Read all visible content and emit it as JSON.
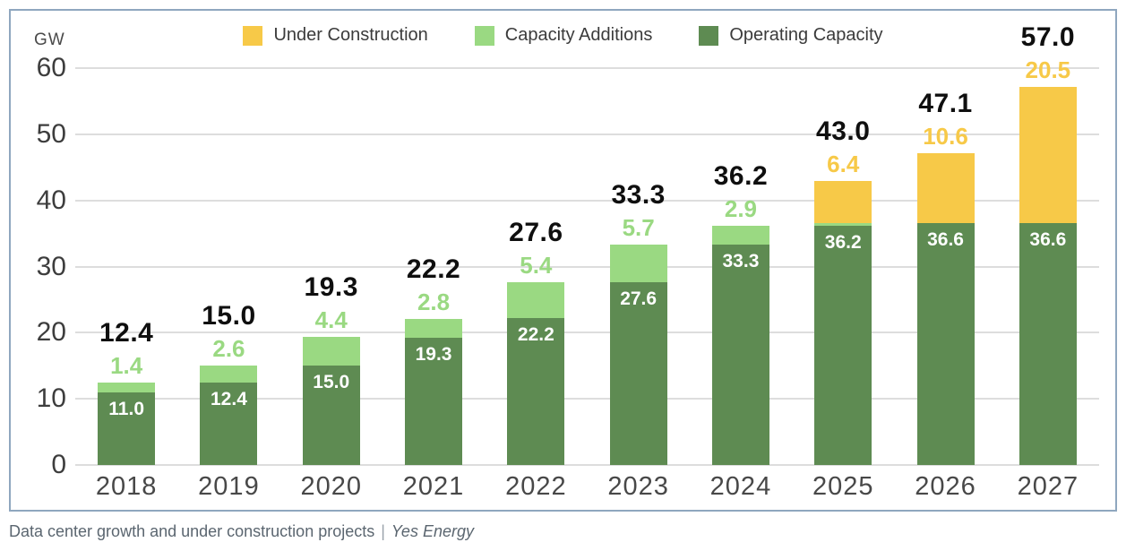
{
  "colors": {
    "under_construction": "#F7C948",
    "capacity_additions": "#9AD982",
    "operating_capacity": "#5E8B52",
    "total_label": "#0F0F0F",
    "border": "#8FA7BF",
    "gridline": "#DDDDDD"
  },
  "legend": [
    {
      "label": "Under Construction",
      "color_key": "under_construction"
    },
    {
      "label": "Capacity Additions",
      "color_key": "capacity_additions"
    },
    {
      "label": "Operating Capacity",
      "color_key": "operating_capacity"
    }
  ],
  "caption": {
    "text": "Data center growth and under construction projects",
    "separator": "|",
    "source": "Yes Energy"
  },
  "chart_data": {
    "type": "bar",
    "stacked": true,
    "title": "Data center growth and under construction projects",
    "unit": "GW",
    "ylabel": "GW",
    "xlabel": "",
    "ylim": [
      0,
      60
    ],
    "ytick_interval": 10,
    "grid": true,
    "legend_position": "top",
    "categories": [
      "2018",
      "2019",
      "2020",
      "2021",
      "2022",
      "2023",
      "2024",
      "2025",
      "2026",
      "2027"
    ],
    "series": [
      {
        "name": "Operating Capacity",
        "values": [
          11.0,
          12.4,
          15.0,
          19.3,
          22.2,
          27.6,
          33.3,
          36.2,
          36.6,
          36.6
        ]
      },
      {
        "name": "Capacity Additions",
        "values": [
          1.4,
          2.6,
          4.4,
          2.8,
          5.4,
          5.7,
          2.9,
          0.4,
          0,
          0
        ]
      },
      {
        "name": "Under Construction",
        "values": [
          0,
          0,
          0,
          0,
          0,
          0,
          0,
          6.4,
          10.6,
          20.5
        ]
      }
    ],
    "totals": [
      12.4,
      15.0,
      19.3,
      22.2,
      27.6,
      33.3,
      36.2,
      43.0,
      47.1,
      57.0
    ],
    "bars": [
      {
        "year": "2018",
        "operating": 11.0,
        "additions": 1.4,
        "under_construction": 0,
        "inner_label": "11.0",
        "accent_label": "1.4",
        "accent_series": "capacity_additions",
        "total_label": "12.4"
      },
      {
        "year": "2019",
        "operating": 12.4,
        "additions": 2.6,
        "under_construction": 0,
        "inner_label": "12.4",
        "accent_label": "2.6",
        "accent_series": "capacity_additions",
        "total_label": "15.0"
      },
      {
        "year": "2020",
        "operating": 15.0,
        "additions": 4.4,
        "under_construction": 0,
        "inner_label": "15.0",
        "accent_label": "4.4",
        "accent_series": "capacity_additions",
        "total_label": "19.3"
      },
      {
        "year": "2021",
        "operating": 19.3,
        "additions": 2.8,
        "under_construction": 0,
        "inner_label": "19.3",
        "accent_label": "2.8",
        "accent_series": "capacity_additions",
        "total_label": "22.2"
      },
      {
        "year": "2022",
        "operating": 22.2,
        "additions": 5.4,
        "under_construction": 0,
        "inner_label": "22.2",
        "accent_label": "5.4",
        "accent_series": "capacity_additions",
        "total_label": "27.6"
      },
      {
        "year": "2023",
        "operating": 27.6,
        "additions": 5.7,
        "under_construction": 0,
        "inner_label": "27.6",
        "accent_label": "5.7",
        "accent_series": "capacity_additions",
        "total_label": "33.3"
      },
      {
        "year": "2024",
        "operating": 33.3,
        "additions": 2.9,
        "under_construction": 0,
        "inner_label": "33.3",
        "accent_label": "2.9",
        "accent_series": "capacity_additions",
        "total_label": "36.2"
      },
      {
        "year": "2025",
        "operating": 36.2,
        "additions": 0.4,
        "under_construction": 6.4,
        "inner_label": "36.2",
        "accent_label": "6.4",
        "accent_series": "under_construction",
        "total_label": "43.0"
      },
      {
        "year": "2026",
        "operating": 36.6,
        "additions": 0,
        "under_construction": 10.6,
        "inner_label": "36.6",
        "accent_label": "10.6",
        "accent_series": "under_construction",
        "total_label": "47.1"
      },
      {
        "year": "2027",
        "operating": 36.6,
        "additions": 0,
        "under_construction": 20.5,
        "inner_label": "36.6",
        "accent_label": "20.5",
        "accent_series": "under_construction",
        "total_label": "57.0"
      }
    ]
  }
}
